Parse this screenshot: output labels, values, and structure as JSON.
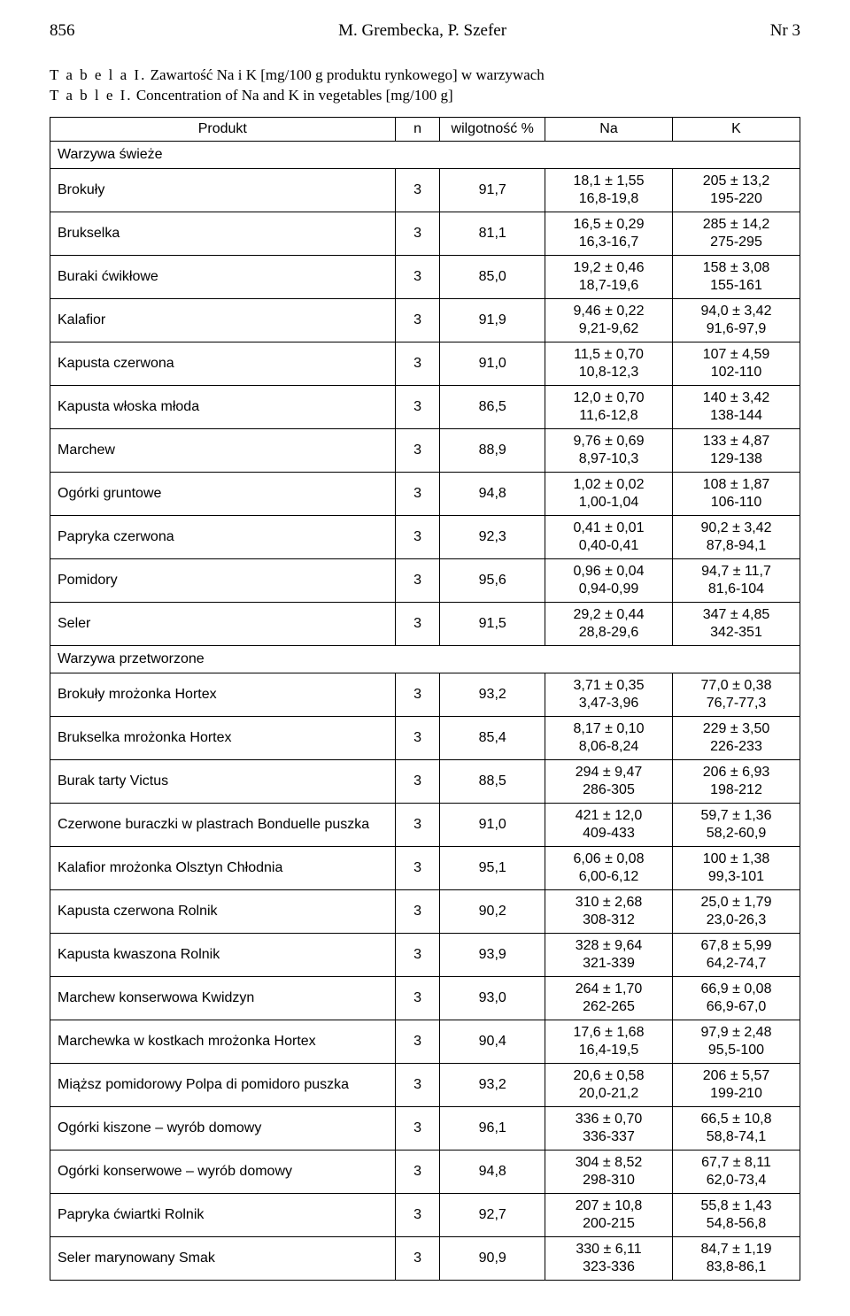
{
  "header": {
    "page_left": "856",
    "title": "M. Grembecka, P. Szefer",
    "page_right": "Nr 3"
  },
  "caption": {
    "table_label_pl": "T a b e l a  I.",
    "title_pl": "Zawartość Na i K [mg/100 g produktu rynkowego] w warzywach",
    "table_label_en": "T a b l e  I.",
    "title_en": "Concentration of Na and K in vegetables [mg/100 g]"
  },
  "columns": {
    "c0": "Produkt",
    "c1": "n",
    "c2": "wilgotność %",
    "c3": "Na",
    "c4": "K"
  },
  "sections": {
    "s1": "Warzywa świeże",
    "s2": "Warzywa przetworzone"
  },
  "rows": [
    {
      "product": "Brokuły",
      "n": "3",
      "wilg": "91,7",
      "na_m": "18,1 ± 1,55",
      "na_r": "16,8-19,8",
      "k_m": "205 ± 13,2",
      "k_r": "195-220"
    },
    {
      "product": "Brukselka",
      "n": "3",
      "wilg": "81,1",
      "na_m": "16,5 ± 0,29",
      "na_r": "16,3-16,7",
      "k_m": "285 ± 14,2",
      "k_r": "275-295"
    },
    {
      "product": "Buraki ćwikłowe",
      "n": "3",
      "wilg": "85,0",
      "na_m": "19,2 ± 0,46",
      "na_r": "18,7-19,6",
      "k_m": "158 ± 3,08",
      "k_r": "155-161"
    },
    {
      "product": "Kalafior",
      "n": "3",
      "wilg": "91,9",
      "na_m": "9,46 ± 0,22",
      "na_r": "9,21-9,62",
      "k_m": "94,0 ± 3,42",
      "k_r": "91,6-97,9"
    },
    {
      "product": "Kapusta czerwona",
      "n": "3",
      "wilg": "91,0",
      "na_m": "11,5 ± 0,70",
      "na_r": "10,8-12,3",
      "k_m": "107 ± 4,59",
      "k_r": "102-110"
    },
    {
      "product": "Kapusta włoska młoda",
      "n": "3",
      "wilg": "86,5",
      "na_m": "12,0 ± 0,70",
      "na_r": "11,6-12,8",
      "k_m": "140 ± 3,42",
      "k_r": "138-144"
    },
    {
      "product": "Marchew",
      "n": "3",
      "wilg": "88,9",
      "na_m": "9,76 ± 0,69",
      "na_r": "8,97-10,3",
      "k_m": "133 ± 4,87",
      "k_r": "129-138"
    },
    {
      "product": "Ogórki gruntowe",
      "n": "3",
      "wilg": "94,8",
      "na_m": "1,02 ± 0,02",
      "na_r": "1,00-1,04",
      "k_m": "108 ± 1,87",
      "k_r": "106-110"
    },
    {
      "product": "Papryka czerwona",
      "n": "3",
      "wilg": "92,3",
      "na_m": "0,41 ± 0,01",
      "na_r": "0,40-0,41",
      "k_m": "90,2 ± 3,42",
      "k_r": "87,8-94,1"
    },
    {
      "product": "Pomidory",
      "n": "3",
      "wilg": "95,6",
      "na_m": "0,96 ± 0,04",
      "na_r": "0,94-0,99",
      "k_m": "94,7 ± 11,7",
      "k_r": "81,6-104"
    },
    {
      "product": "Seler",
      "n": "3",
      "wilg": "91,5",
      "na_m": "29,2 ± 0,44",
      "na_r": "28,8-29,6",
      "k_m": "347 ± 4,85",
      "k_r": "342-351"
    }
  ],
  "rows2": [
    {
      "product": "Brokuły mrożonka Hortex",
      "n": "3",
      "wilg": "93,2",
      "na_m": "3,71 ± 0,35",
      "na_r": "3,47-3,96",
      "k_m": "77,0 ± 0,38",
      "k_r": "76,7-77,3"
    },
    {
      "product": "Brukselka mrożonka Hortex",
      "n": "3",
      "wilg": "85,4",
      "na_m": "8,17 ± 0,10",
      "na_r": "8,06-8,24",
      "k_m": "229 ± 3,50",
      "k_r": "226-233"
    },
    {
      "product": "Burak tarty Victus",
      "n": "3",
      "wilg": "88,5",
      "na_m": "294 ± 9,47",
      "na_r": "286-305",
      "k_m": "206 ± 6,93",
      "k_r": "198-212"
    },
    {
      "product": "Czerwone buraczki w plastrach Bonduelle puszka",
      "n": "3",
      "wilg": "91,0",
      "na_m": "421 ± 12,0",
      "na_r": "409-433",
      "k_m": "59,7 ± 1,36",
      "k_r": "58,2-60,9"
    },
    {
      "product": "Kalafior mrożonka Olsztyn Chłodnia",
      "n": "3",
      "wilg": "95,1",
      "na_m": "6,06 ± 0,08",
      "na_r": "6,00-6,12",
      "k_m": "100 ± 1,38",
      "k_r": "99,3-101"
    },
    {
      "product": "Kapusta czerwona Rolnik",
      "n": "3",
      "wilg": "90,2",
      "na_m": "310 ± 2,68",
      "na_r": "308-312",
      "k_m": "25,0 ± 1,79",
      "k_r": "23,0-26,3"
    },
    {
      "product": "Kapusta kwaszona Rolnik",
      "n": "3",
      "wilg": "93,9",
      "na_m": "328 ± 9,64",
      "na_r": "321-339",
      "k_m": "67,8 ± 5,99",
      "k_r": "64,2-74,7"
    },
    {
      "product": "Marchew konserwowa Kwidzyn",
      "n": "3",
      "wilg": "93,0",
      "na_m": "264 ± 1,70",
      "na_r": "262-265",
      "k_m": "66,9 ± 0,08",
      "k_r": "66,9-67,0"
    },
    {
      "product": "Marchewka w kostkach mrożonka Hortex",
      "n": "3",
      "wilg": "90,4",
      "na_m": "17,6 ± 1,68",
      "na_r": "16,4-19,5",
      "k_m": "97,9 ± 2,48",
      "k_r": "95,5-100"
    },
    {
      "product": "Miąższ pomidorowy Polpa di pomidoro puszka",
      "n": "3",
      "wilg": "93,2",
      "na_m": "20,6 ± 0,58",
      "na_r": "20,0-21,2",
      "k_m": "206 ± 5,57",
      "k_r": "199-210"
    },
    {
      "product": "Ogórki kiszone – wyrób domowy",
      "n": "3",
      "wilg": "96,1",
      "na_m": "336 ± 0,70",
      "na_r": "336-337",
      "k_m": "66,5 ± 10,8",
      "k_r": "58,8-74,1"
    },
    {
      "product": "Ogórki konserwowe – wyrób domowy",
      "n": "3",
      "wilg": "94,8",
      "na_m": "304 ± 8,52",
      "na_r": "298-310",
      "k_m": "67,7 ± 8,11",
      "k_r": "62,0-73,4"
    },
    {
      "product": "Papryka ćwiartki Rolnik",
      "n": "3",
      "wilg": "92,7",
      "na_m": "207 ± 10,8",
      "na_r": "200-215",
      "k_m": "55,8 ± 1,43",
      "k_r": "54,8-56,8"
    },
    {
      "product": "Seler marynowany Smak",
      "n": "3",
      "wilg": "90,9",
      "na_m": "330 ± 6,11",
      "na_r": "323-336",
      "k_m": "84,7 ± 1,19",
      "k_r": "83,8-86,1"
    }
  ]
}
